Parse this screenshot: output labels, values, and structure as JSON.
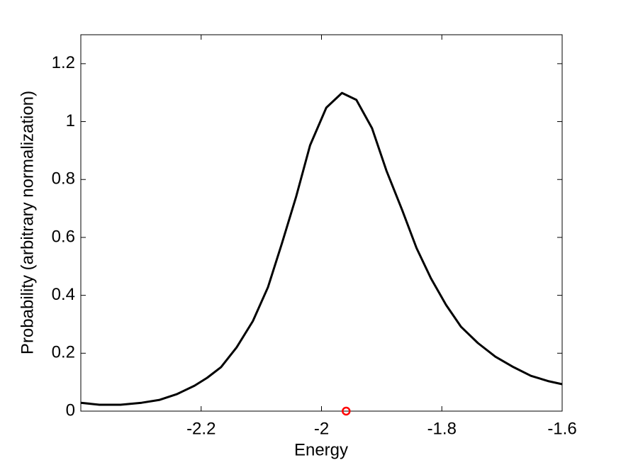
{
  "chart_data": {
    "type": "line",
    "xlabel": "Energy",
    "ylabel": "Probability (arbitrary normalization)",
    "series": [
      {
        "color": "#000000",
        "x": [
          -2.4,
          -2.369,
          -2.334,
          -2.299,
          -2.269,
          -2.24,
          -2.211,
          -2.19,
          -2.167,
          -2.141,
          -2.114,
          -2.089,
          -2.066,
          -2.042,
          -2.019,
          -1.992,
          -1.966,
          -1.942,
          -1.916,
          -1.892,
          -1.866,
          -1.842,
          -1.818,
          -1.793,
          -1.768,
          -1.74,
          -1.711,
          -1.681,
          -1.652,
          -1.622,
          -1.6
        ],
        "values": [
          0.029,
          0.022,
          0.022,
          0.029,
          0.039,
          0.059,
          0.088,
          0.115,
          0.152,
          0.22,
          0.311,
          0.428,
          0.578,
          0.742,
          0.918,
          1.048,
          1.099,
          1.075,
          0.977,
          0.83,
          0.695,
          0.563,
          0.458,
          0.367,
          0.291,
          0.235,
          0.188,
          0.152,
          0.122,
          0.103,
          0.093
        ]
      },
      {
        "color": "#ff0000",
        "marker": "circle",
        "x": [
          -1.959
        ],
        "values": [
          0
        ]
      }
    ],
    "xlim": [
      -2.4,
      -1.6
    ],
    "ylim": [
      0,
      1.3
    ],
    "xticks": [
      -2.2,
      -2,
      -1.8,
      -1.6
    ],
    "yticks": [
      0,
      0.2,
      0.4,
      0.6,
      0.8,
      1,
      1.2
    ],
    "grid": false
  }
}
